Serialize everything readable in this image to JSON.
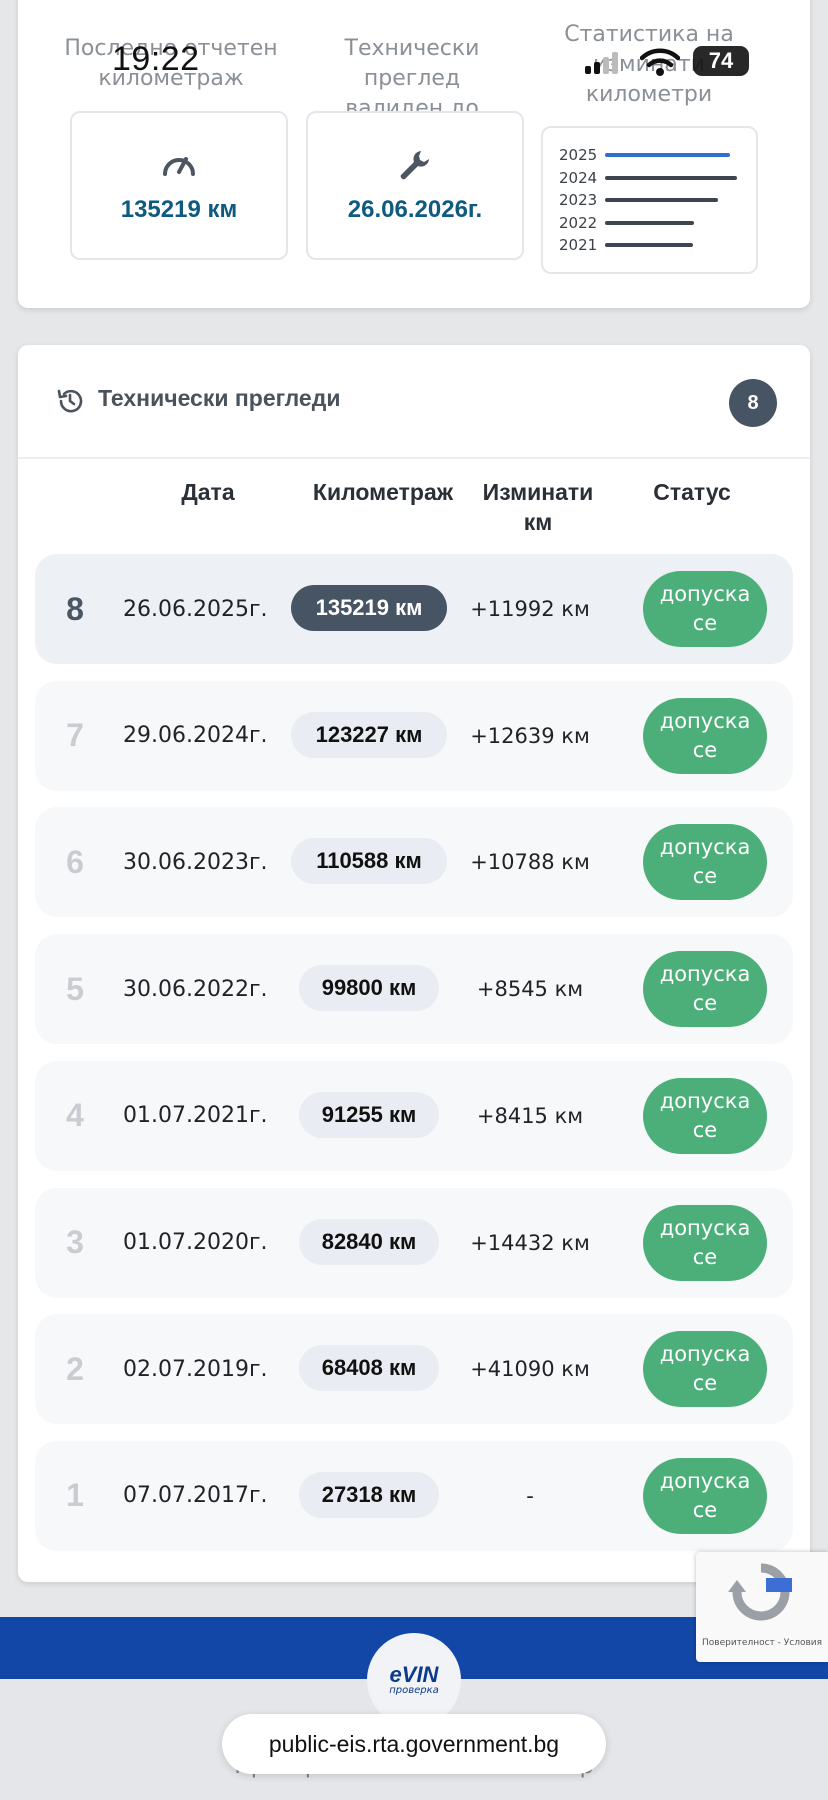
{
  "status_bar": {
    "time": "19:22",
    "battery": "74"
  },
  "summary": {
    "last_mileage": {
      "title_line1": "Последно отчетен",
      "title_line2": "километраж",
      "value": "135219 км",
      "icon": "speedometer-icon"
    },
    "inspection_valid": {
      "title_line1": "Технически преглед",
      "title_line2": "валиден до",
      "value": "26.06.2026г.",
      "icon": "wrench-icon"
    },
    "km_stats": {
      "title_line1": "Статистика на",
      "title_line2": "изминати",
      "title_line3": "километри",
      "years": [
        {
          "label": "2025",
          "value": 11992,
          "color": "#2f6fd0"
        },
        {
          "label": "2024",
          "value": 12639,
          "color": "#3d4650"
        },
        {
          "label": "2023",
          "value": 10788,
          "color": "#3d4650"
        },
        {
          "label": "2022",
          "value": 8545,
          "color": "#3d4650"
        },
        {
          "label": "2021",
          "value": 8415,
          "color": "#3d4650"
        }
      ]
    }
  },
  "inspections": {
    "title": "Технически прегледи",
    "count": "8",
    "columns": {
      "date": "Дата",
      "mileage": "Километраж",
      "driven_line1": "Изминати",
      "driven_line2": "км",
      "status": "Статус"
    },
    "rows": [
      {
        "num": "8",
        "date": "26.06.2025г.",
        "mileage": "135219 км",
        "delta": "+11992 км",
        "status_line1": "допуска",
        "status_line2": "се"
      },
      {
        "num": "7",
        "date": "29.06.2024г.",
        "mileage": "123227 км",
        "delta": "+12639 км",
        "status_line1": "допуска",
        "status_line2": "се"
      },
      {
        "num": "6",
        "date": "30.06.2023г.",
        "mileage": "110588 км",
        "delta": "+10788 км",
        "status_line1": "допуска",
        "status_line2": "се"
      },
      {
        "num": "5",
        "date": "30.06.2022г.",
        "mileage": "99800 км",
        "delta": "+8545 км",
        "status_line1": "допуска",
        "status_line2": "се"
      },
      {
        "num": "4",
        "date": "01.07.2021г.",
        "mileage": "91255 км",
        "delta": "+8415 км",
        "status_line1": "допуска",
        "status_line2": "се"
      },
      {
        "num": "3",
        "date": "01.07.2020г.",
        "mileage": "82840 км",
        "delta": "+14432 км",
        "status_line1": "допуска",
        "status_line2": "се"
      },
      {
        "num": "2",
        "date": "02.07.2019г.",
        "mileage": "68408 км",
        "delta": "+41090 км",
        "status_line1": "допуска",
        "status_line2": "се"
      },
      {
        "num": "1",
        "date": "07.07.2017г.",
        "mileage": "27318 км",
        "delta": "-",
        "status_line1": "допуска",
        "status_line2": "се"
      }
    ]
  },
  "footer": {
    "logo_main": "eVIN",
    "logo_sub": "проверка",
    "under_text": "Проверка на ГНС по VIN Номер",
    "url": "public-eis.rta.government.bg",
    "recaptcha": "Поверителност - Условия"
  },
  "colors": {
    "accent_value": "#0f5a80",
    "status_green": "#4caf7a",
    "badge_dark": "#465463",
    "footer_blue": "#1247a8"
  }
}
